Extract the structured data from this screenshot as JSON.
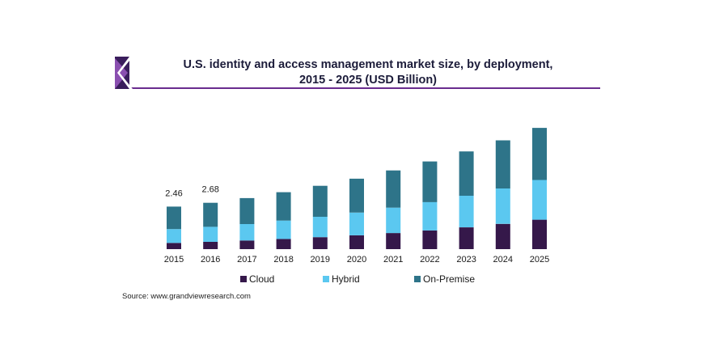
{
  "header": {
    "title_line1": "U.S. identity and access management market size, by deployment,",
    "title_line2": "2015 - 2025 (USD Billion)"
  },
  "source": "Source: www.grandviewresearch.com",
  "colors": {
    "cloud": "#35184a",
    "hybrid": "#5bc8f0",
    "on_premise": "#2e7489",
    "logo_dark": "#3a1d5c",
    "logo_light": "#8a4fb0",
    "rule": "#6a2c8e"
  },
  "chart_data": {
    "type": "bar",
    "stacked": true,
    "title": "U.S. identity and access management market size, by deployment, 2015 - 2025 (USD Billion)",
    "categories": [
      "2015",
      "2016",
      "2017",
      "2018",
      "2019",
      "2020",
      "2021",
      "2022",
      "2023",
      "2024",
      "2025"
    ],
    "series": [
      {
        "name": "Cloud",
        "color": "#35184a",
        "values": [
          0.36,
          0.42,
          0.5,
          0.59,
          0.69,
          0.8,
          0.93,
          1.08,
          1.26,
          1.46,
          1.7
        ]
      },
      {
        "name": "Hybrid",
        "color": "#5bc8f0",
        "values": [
          0.8,
          0.87,
          0.95,
          1.06,
          1.18,
          1.31,
          1.47,
          1.64,
          1.83,
          2.05,
          2.3
        ]
      },
      {
        "name": "On-Premise",
        "color": "#2e7489",
        "values": [
          1.3,
          1.39,
          1.5,
          1.64,
          1.79,
          1.96,
          2.15,
          2.35,
          2.56,
          2.78,
          3.01
        ]
      }
    ],
    "data_labels": [
      {
        "category": "2015",
        "text": "2.46"
      },
      {
        "category": "2016",
        "text": "2.68"
      }
    ],
    "ylim": [
      0,
      7.2
    ],
    "y_axis_visible": false,
    "grid": false,
    "legend": {
      "position": "bottom",
      "entries": [
        "Cloud",
        "Hybrid",
        "On-Premise"
      ]
    }
  }
}
